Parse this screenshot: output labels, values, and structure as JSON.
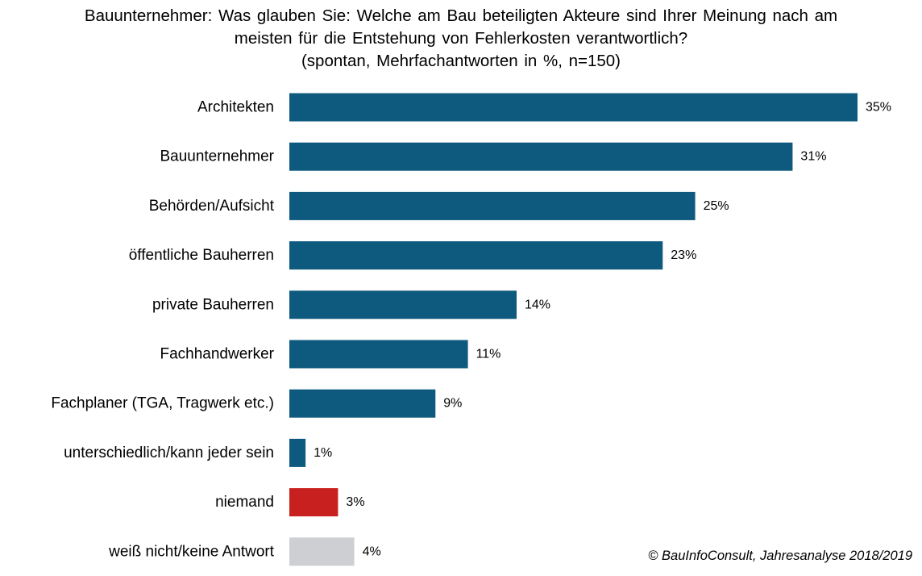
{
  "chart_data": {
    "type": "bar",
    "orientation": "horizontal",
    "title_lines": [
      "Bauunternehmer:  Was glauben  Sie: Welche am Bau beteiligten Akteure sind Ihrer Meinung nach am",
      "meisten für die Entstehung von Fehlerkosten verantwortlich?",
      "(spontan, Mehrfachantworten in %, n=150)"
    ],
    "categories": [
      "Architekten",
      "Bauunternehmer",
      "Behörden/Aufsicht",
      "öffentliche Bauherren",
      "private Bauherren",
      "Fachhandwerker",
      "Fachplaner (TGA, Tragwerk etc.)",
      "unterschiedlich/kann jeder sein",
      "niemand",
      "weiß nicht/keine Antwort"
    ],
    "values": [
      35,
      31,
      25,
      23,
      14,
      11,
      9,
      1,
      3,
      4
    ],
    "value_labels": [
      "35%",
      "31%",
      "25%",
      "23%",
      "14%",
      "11%",
      "9%",
      "1%",
      "3%",
      "4%"
    ],
    "bar_colors": [
      "#0d5a7e",
      "#0d5a7e",
      "#0d5a7e",
      "#0d5a7e",
      "#0d5a7e",
      "#0d5a7e",
      "#0d5a7e",
      "#0d5a7e",
      "#c8201e",
      "#cdcfd2"
    ],
    "xlim": [
      0,
      35
    ],
    "grid": false,
    "legend": "none"
  },
  "source": "© BauInfoConsult, Jahresanalyse 2018/2019"
}
